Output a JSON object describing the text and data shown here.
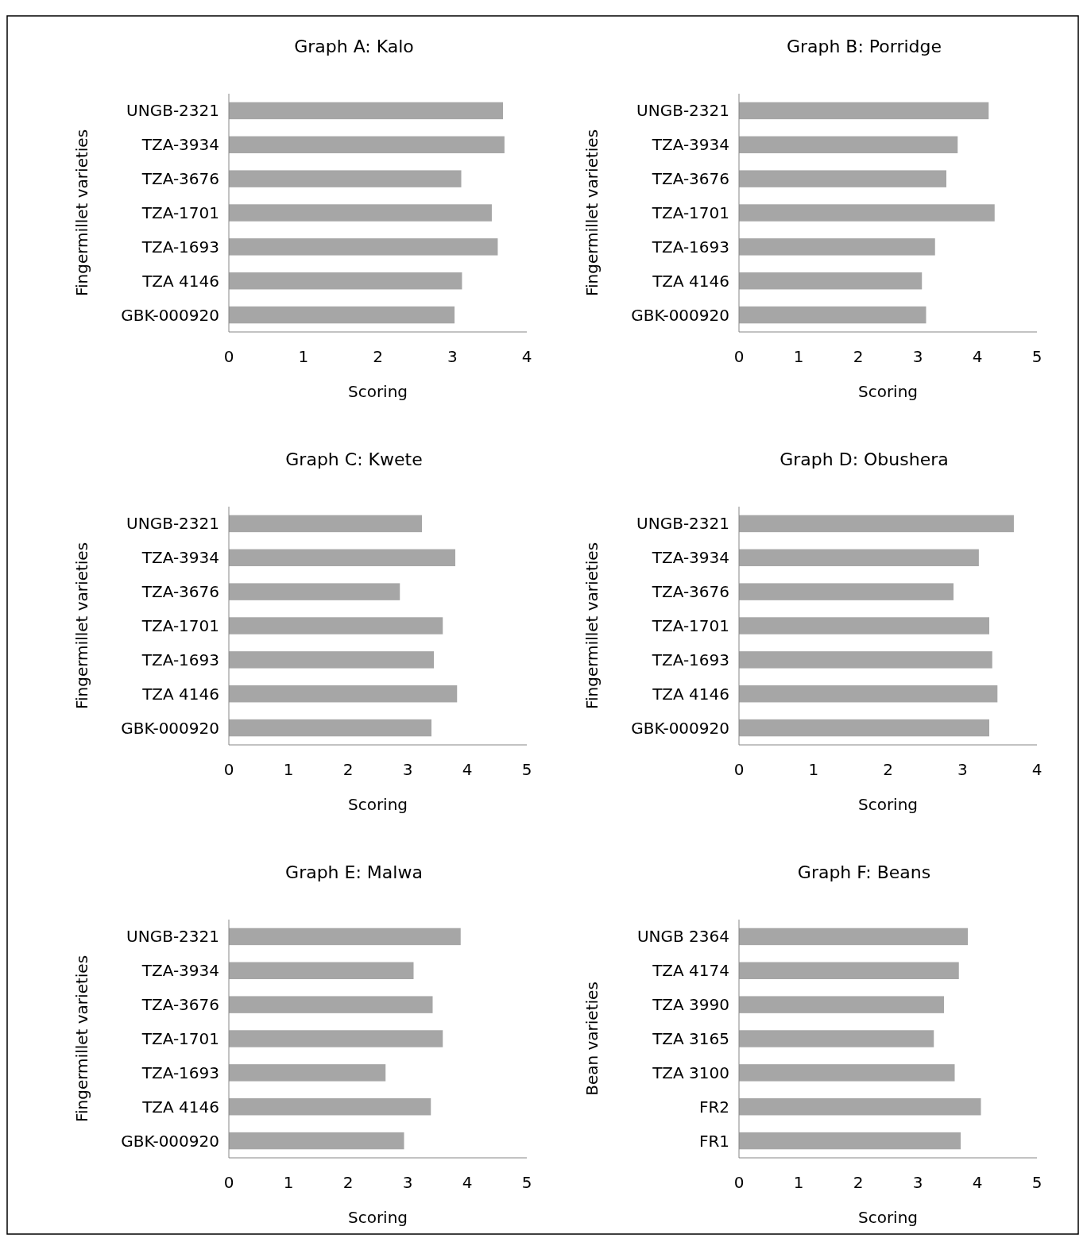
{
  "chart_data": [
    {
      "type": "bar",
      "orientation": "horizontal",
      "title": "Graph A: Kalo",
      "xlabel": "Scoring",
      "ylabel": "Fingermillet varieties",
      "categories": [
        "UNGB-2321",
        "TZA-3934",
        "TZA-3676",
        "TZA-1701",
        "TZA-1693",
        "TZA 4146",
        "GBK-000920"
      ],
      "values": [
        3.68,
        3.7,
        3.12,
        3.53,
        3.61,
        3.13,
        3.03
      ],
      "color": "#a6a6a6",
      "xlim": [
        0,
        4
      ],
      "xticks": [
        0,
        1,
        2,
        3,
        4
      ],
      "grid": false
    },
    {
      "type": "bar",
      "orientation": "horizontal",
      "title": "Graph B: Porridge",
      "xlabel": "Scoring",
      "ylabel": "Fingermillet varieties",
      "categories": [
        "UNGB-2321",
        "TZA-3934",
        "TZA-3676",
        "TZA-1701",
        "TZA-1693",
        "TZA 4146",
        "GBK-000920"
      ],
      "values": [
        4.19,
        3.67,
        3.48,
        4.29,
        3.29,
        3.07,
        3.14
      ],
      "color": "#a6a6a6",
      "xlim": [
        0,
        5
      ],
      "xticks": [
        0,
        1,
        2,
        3,
        4,
        5
      ],
      "grid": false
    },
    {
      "type": "bar",
      "orientation": "horizontal",
      "title": "Graph C: Kwete",
      "xlabel": "Scoring",
      "ylabel": "Fingermillet varieties",
      "categories": [
        "UNGB-2321",
        "TZA-3934",
        "TZA-3676",
        "TZA-1701",
        "TZA-1693",
        "TZA 4146",
        "GBK-000920"
      ],
      "values": [
        3.24,
        3.8,
        2.87,
        3.59,
        3.44,
        3.83,
        3.4
      ],
      "color": "#a6a6a6",
      "xlim": [
        0,
        5
      ],
      "xticks": [
        0,
        1,
        2,
        3,
        4,
        5
      ],
      "grid": false
    },
    {
      "type": "bar",
      "orientation": "horizontal",
      "title": "Graph D: Obushera",
      "xlabel": "Scoring",
      "ylabel": "Fingermillet varieties",
      "categories": [
        "UNGB-2321",
        "TZA-3934",
        "TZA-3676",
        "TZA-1701",
        "TZA-1693",
        "TZA 4146",
        "GBK-000920"
      ],
      "values": [
        3.69,
        3.22,
        2.88,
        3.36,
        3.4,
        3.47,
        3.36
      ],
      "color": "#a6a6a6",
      "xlim": [
        0,
        4
      ],
      "xticks": [
        0,
        1,
        2,
        3,
        4
      ],
      "grid": false
    },
    {
      "type": "bar",
      "orientation": "horizontal",
      "title": "Graph E: Malwa",
      "xlabel": "Scoring",
      "ylabel": "Fingermillet varieties",
      "categories": [
        "UNGB-2321",
        "TZA-3934",
        "TZA-3676",
        "TZA-1701",
        "TZA-1693",
        "TZA 4146",
        "GBK-000920"
      ],
      "values": [
        3.89,
        3.1,
        3.42,
        3.59,
        2.63,
        3.39,
        2.94
      ],
      "color": "#a6a6a6",
      "xlim": [
        0,
        5
      ],
      "xticks": [
        0,
        1,
        2,
        3,
        4,
        5
      ],
      "grid": false
    },
    {
      "type": "bar",
      "orientation": "horizontal",
      "title": "Graph F: Beans",
      "xlabel": "Scoring",
      "ylabel": "Bean varieties",
      "categories": [
        "UNGB 2364",
        "TZA 4174",
        "TZA 3990",
        "TZA 3165",
        "TZA 3100",
        "FR2",
        "FR1"
      ],
      "values": [
        3.84,
        3.69,
        3.44,
        3.27,
        3.62,
        4.06,
        3.72
      ],
      "color": "#a6a6a6",
      "xlim": [
        0,
        5
      ],
      "xticks": [
        0,
        1,
        2,
        3,
        4,
        5
      ],
      "grid": false
    }
  ]
}
